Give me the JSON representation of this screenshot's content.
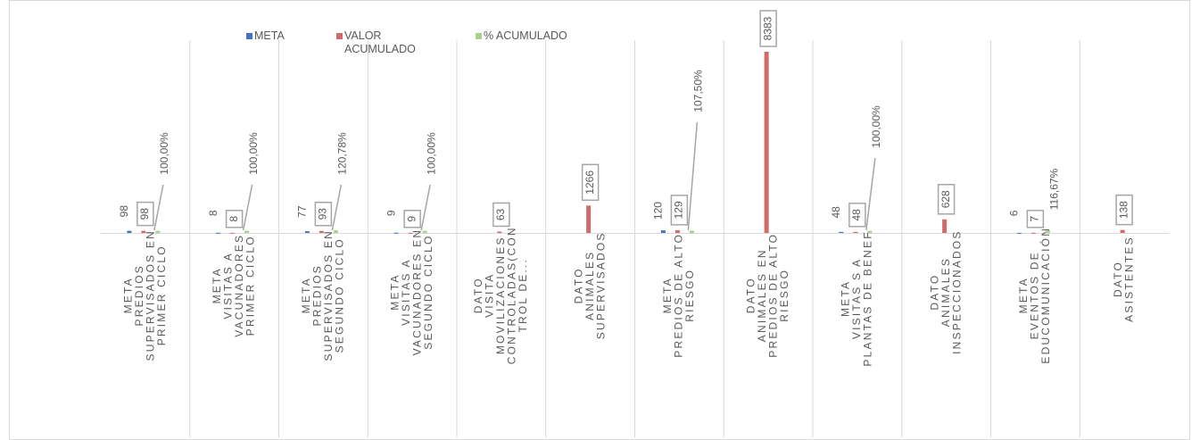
{
  "chart_data": {
    "type": "bar",
    "categories": [
      [
        "META",
        "PREDIOS",
        "SUPERVISADOS EN",
        "PRIMER CICLO"
      ],
      [
        "META",
        "VISITAS A",
        "VACUNADORES",
        "PRIMER CICLO"
      ],
      [
        "META",
        "PREDIOS",
        "SUPERVISADOS EN",
        "SEGUNDO CICLO"
      ],
      [
        "META",
        "VISITAS  A",
        "VACUNADORES EN",
        "SEGUNDO CICLO"
      ],
      [
        "DATO",
        "VISITA",
        "MOVILIZACIONES",
        "CONTROLADAS(CON",
        "TROL DE..."
      ],
      [
        "DATO",
        "ANIMALES",
        "SUPERVISADOS"
      ],
      [
        "META",
        "PREDIOS DE ALTO",
        "RIESGO"
      ],
      [
        "DATO",
        "ANIMALES EN",
        "PREDIOS DE ALTO",
        "RIESGO"
      ],
      [
        "META",
        "VISITAS S A",
        "PLANTAS DE BENEF"
      ],
      [
        "DATO",
        "ANIMALES",
        "INSPECCIONADOS"
      ],
      [
        "META",
        "EVENTOS DE",
        "EDUCOMUNICACIÓN"
      ],
      [
        "DATO",
        "ASISTENTES"
      ]
    ],
    "series": [
      {
        "name": "META",
        "color": "#4472c4",
        "values": [
          98,
          8,
          77,
          9,
          null,
          null,
          120,
          null,
          48,
          null,
          6,
          null
        ]
      },
      {
        "name": "VALOR ACUMULADO",
        "color": "#d06b6b",
        "values": [
          98,
          8,
          93,
          9,
          63,
          1266,
          129,
          8383,
          48,
          628,
          7,
          138
        ]
      },
      {
        "name": "% ACUMULADO",
        "color": "#a9d18e",
        "values": [
          100,
          100,
          120.78,
          100,
          null,
          null,
          107.5,
          null,
          100,
          null,
          116.67,
          null
        ],
        "value_labels": [
          "100,00%",
          "100,00%",
          "120,78%",
          "100,00%",
          null,
          null,
          "107,50%",
          null,
          "100,00%",
          null,
          "116,67%",
          null
        ]
      }
    ],
    "legend": "top"
  }
}
